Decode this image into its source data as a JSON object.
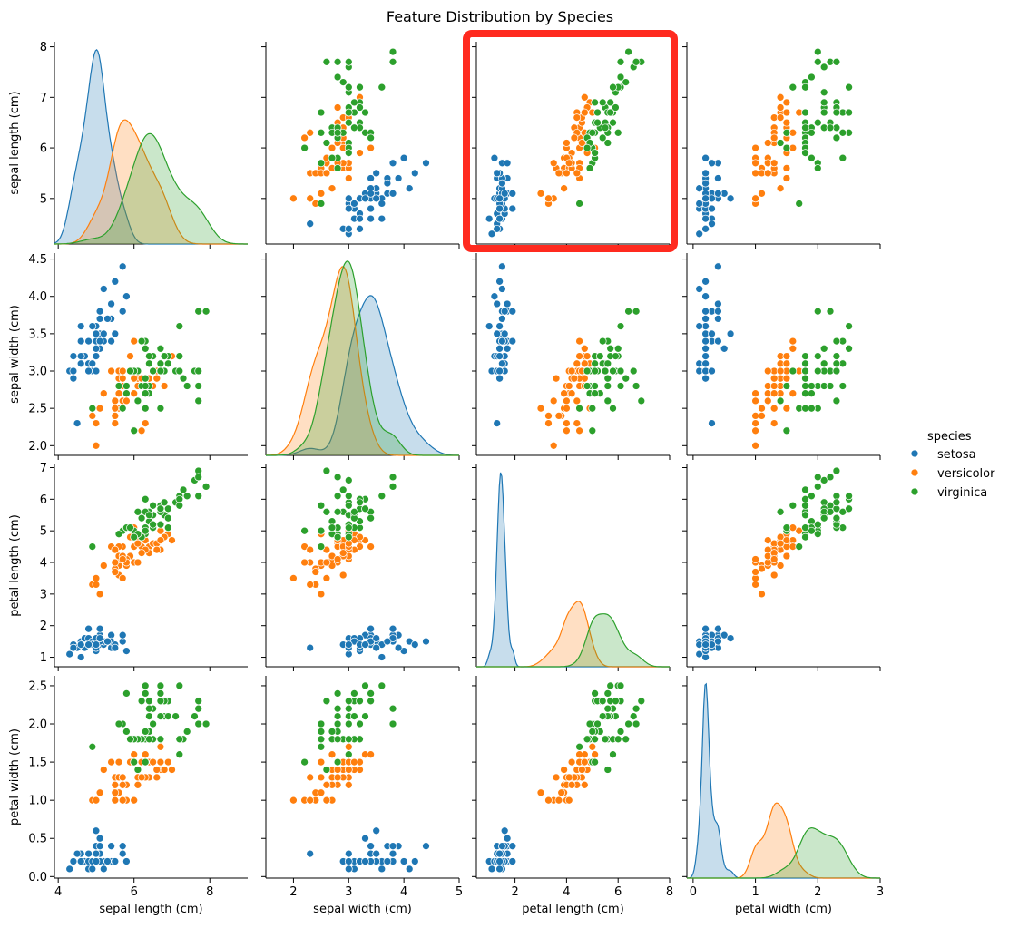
{
  "chart_data": {
    "type": "scatter",
    "title": "Feature Distribution by Species",
    "features": [
      "sepal length (cm)",
      "sepal width (cm)",
      "petal length (cm)",
      "petal width (cm)"
    ],
    "diagonal_type": "kde",
    "tick_labels": [
      [
        "4",
        "6",
        "8"
      ],
      [
        "2",
        "3",
        "4",
        "5"
      ],
      [
        "2",
        "4",
        "6",
        "8"
      ],
      [
        "0",
        "1",
        "2",
        "3"
      ]
    ],
    "y_tick_labels": [
      [
        "5",
        "6",
        "7",
        "8"
      ],
      [
        "2.0",
        "2.5",
        "3.0",
        "3.5",
        "4.0",
        "4.5"
      ],
      [
        "1",
        "2",
        "3",
        "4",
        "5",
        "6",
        "7"
      ],
      [
        "0.0",
        "0.5",
        "1.0",
        "1.5",
        "2.0",
        "2.5"
      ]
    ],
    "legend": {
      "title": "species",
      "placement": "right",
      "entries": [
        "setosa",
        "versicolor",
        "virginica"
      ]
    },
    "highlight": {
      "panel": "sepal length (cm) vs petal length (cm)",
      "color": "#ff2a1f"
    },
    "colors": {
      "setosa": "#1f77b4",
      "versicolor": "#ff7f0e",
      "virginica": "#2ca02c"
    },
    "series": [
      {
        "name": "setosa",
        "values": [
          [
            5.1,
            3.5,
            1.4,
            0.2
          ],
          [
            4.9,
            3.0,
            1.4,
            0.2
          ],
          [
            4.7,
            3.2,
            1.3,
            0.2
          ],
          [
            4.6,
            3.1,
            1.5,
            0.2
          ],
          [
            5.0,
            3.6,
            1.4,
            0.2
          ],
          [
            5.4,
            3.9,
            1.7,
            0.4
          ],
          [
            4.6,
            3.4,
            1.4,
            0.3
          ],
          [
            5.0,
            3.4,
            1.5,
            0.2
          ],
          [
            4.4,
            2.9,
            1.4,
            0.2
          ],
          [
            4.9,
            3.1,
            1.5,
            0.1
          ],
          [
            5.4,
            3.7,
            1.5,
            0.2
          ],
          [
            4.8,
            3.4,
            1.6,
            0.2
          ],
          [
            4.8,
            3.0,
            1.4,
            0.1
          ],
          [
            4.3,
            3.0,
            1.1,
            0.1
          ],
          [
            5.8,
            4.0,
            1.2,
            0.2
          ],
          [
            5.7,
            4.4,
            1.5,
            0.4
          ],
          [
            5.4,
            3.9,
            1.3,
            0.4
          ],
          [
            5.1,
            3.5,
            1.4,
            0.3
          ],
          [
            5.7,
            3.8,
            1.7,
            0.3
          ],
          [
            5.1,
            3.8,
            1.5,
            0.3
          ],
          [
            5.4,
            3.4,
            1.7,
            0.2
          ],
          [
            5.1,
            3.7,
            1.5,
            0.4
          ],
          [
            4.6,
            3.6,
            1.0,
            0.2
          ],
          [
            5.1,
            3.3,
            1.7,
            0.5
          ],
          [
            4.8,
            3.4,
            1.9,
            0.2
          ],
          [
            5.0,
            3.0,
            1.6,
            0.2
          ],
          [
            5.0,
            3.4,
            1.6,
            0.4
          ],
          [
            5.2,
            3.5,
            1.5,
            0.2
          ],
          [
            5.2,
            3.4,
            1.4,
            0.2
          ],
          [
            4.7,
            3.2,
            1.6,
            0.2
          ],
          [
            4.8,
            3.1,
            1.6,
            0.2
          ],
          [
            5.4,
            3.4,
            1.5,
            0.4
          ],
          [
            5.2,
            4.1,
            1.5,
            0.1
          ],
          [
            5.5,
            4.2,
            1.4,
            0.2
          ],
          [
            4.9,
            3.1,
            1.5,
            0.2
          ],
          [
            5.0,
            3.2,
            1.2,
            0.2
          ],
          [
            5.5,
            3.5,
            1.3,
            0.2
          ],
          [
            4.9,
            3.6,
            1.4,
            0.1
          ],
          [
            4.4,
            3.0,
            1.3,
            0.2
          ],
          [
            5.1,
            3.4,
            1.5,
            0.2
          ],
          [
            5.0,
            3.5,
            1.3,
            0.3
          ],
          [
            4.5,
            2.3,
            1.3,
            0.3
          ],
          [
            4.4,
            3.2,
            1.3,
            0.2
          ],
          [
            5.0,
            3.5,
            1.6,
            0.6
          ],
          [
            5.1,
            3.8,
            1.9,
            0.4
          ],
          [
            4.8,
            3.0,
            1.4,
            0.3
          ],
          [
            5.1,
            3.8,
            1.6,
            0.2
          ],
          [
            4.6,
            3.2,
            1.4,
            0.2
          ],
          [
            5.3,
            3.7,
            1.5,
            0.2
          ],
          [
            5.0,
            3.3,
            1.4,
            0.2
          ]
        ]
      },
      {
        "name": "versicolor",
        "values": [
          [
            7.0,
            3.2,
            4.7,
            1.4
          ],
          [
            6.4,
            3.2,
            4.5,
            1.5
          ],
          [
            6.9,
            3.1,
            4.9,
            1.5
          ],
          [
            5.5,
            2.3,
            4.0,
            1.3
          ],
          [
            6.5,
            2.8,
            4.6,
            1.5
          ],
          [
            5.7,
            2.8,
            4.5,
            1.3
          ],
          [
            6.3,
            3.3,
            4.7,
            1.6
          ],
          [
            4.9,
            2.4,
            3.3,
            1.0
          ],
          [
            6.6,
            2.9,
            4.6,
            1.3
          ],
          [
            5.2,
            2.7,
            3.9,
            1.4
          ],
          [
            5.0,
            2.0,
            3.5,
            1.0
          ],
          [
            5.9,
            3.0,
            4.2,
            1.5
          ],
          [
            6.0,
            2.2,
            4.0,
            1.0
          ],
          [
            6.1,
            2.9,
            4.7,
            1.4
          ],
          [
            5.6,
            2.9,
            3.6,
            1.3
          ],
          [
            6.7,
            3.1,
            4.4,
            1.4
          ],
          [
            5.6,
            3.0,
            4.5,
            1.5
          ],
          [
            5.8,
            2.7,
            4.1,
            1.0
          ],
          [
            6.2,
            2.2,
            4.5,
            1.5
          ],
          [
            5.6,
            2.5,
            3.9,
            1.1
          ],
          [
            5.9,
            3.2,
            4.8,
            1.8
          ],
          [
            6.1,
            2.8,
            4.0,
            1.3
          ],
          [
            6.3,
            2.5,
            4.9,
            1.5
          ],
          [
            6.1,
            2.8,
            4.7,
            1.2
          ],
          [
            6.4,
            2.9,
            4.3,
            1.3
          ],
          [
            6.6,
            3.0,
            4.4,
            1.4
          ],
          [
            6.8,
            2.8,
            4.8,
            1.4
          ],
          [
            6.7,
            3.0,
            5.0,
            1.7
          ],
          [
            6.0,
            2.9,
            4.5,
            1.5
          ],
          [
            5.7,
            2.6,
            3.5,
            1.0
          ],
          [
            5.5,
            2.4,
            3.8,
            1.1
          ],
          [
            5.5,
            2.4,
            3.7,
            1.0
          ],
          [
            5.8,
            2.7,
            3.9,
            1.2
          ],
          [
            6.0,
            2.7,
            5.1,
            1.6
          ],
          [
            5.4,
            3.0,
            4.5,
            1.5
          ],
          [
            6.0,
            3.4,
            4.5,
            1.6
          ],
          [
            6.7,
            3.1,
            4.7,
            1.5
          ],
          [
            6.3,
            2.3,
            4.4,
            1.3
          ],
          [
            5.6,
            3.0,
            4.1,
            1.3
          ],
          [
            5.5,
            2.5,
            4.0,
            1.3
          ],
          [
            5.5,
            2.6,
            4.4,
            1.2
          ],
          [
            6.1,
            3.0,
            4.6,
            1.4
          ],
          [
            5.8,
            2.6,
            4.0,
            1.2
          ],
          [
            5.0,
            2.3,
            3.3,
            1.0
          ],
          [
            5.6,
            2.7,
            4.2,
            1.3
          ],
          [
            5.7,
            3.0,
            4.2,
            1.2
          ],
          [
            5.7,
            2.9,
            4.2,
            1.3
          ],
          [
            6.2,
            2.9,
            4.3,
            1.3
          ],
          [
            5.1,
            2.5,
            3.0,
            1.1
          ],
          [
            5.7,
            2.8,
            4.1,
            1.3
          ]
        ]
      },
      {
        "name": "virginica",
        "values": [
          [
            6.3,
            3.3,
            6.0,
            2.5
          ],
          [
            5.8,
            2.7,
            5.1,
            1.9
          ],
          [
            7.1,
            3.0,
            5.9,
            2.1
          ],
          [
            6.3,
            2.9,
            5.6,
            1.8
          ],
          [
            6.5,
            3.0,
            5.8,
            2.2
          ],
          [
            7.6,
            3.0,
            6.6,
            2.1
          ],
          [
            4.9,
            2.5,
            4.5,
            1.7
          ],
          [
            7.3,
            2.9,
            6.3,
            1.8
          ],
          [
            6.7,
            2.5,
            5.8,
            1.8
          ],
          [
            7.2,
            3.6,
            6.1,
            2.5
          ],
          [
            6.5,
            3.2,
            5.1,
            2.0
          ],
          [
            6.4,
            2.7,
            5.3,
            1.9
          ],
          [
            6.8,
            3.0,
            5.5,
            2.1
          ],
          [
            5.7,
            2.5,
            5.0,
            2.0
          ],
          [
            5.8,
            2.8,
            5.1,
            2.4
          ],
          [
            6.4,
            3.2,
            5.3,
            2.3
          ],
          [
            6.5,
            3.0,
            5.5,
            1.8
          ],
          [
            7.7,
            3.8,
            6.7,
            2.2
          ],
          [
            7.7,
            2.6,
            6.9,
            2.3
          ],
          [
            6.0,
            2.2,
            5.0,
            1.5
          ],
          [
            6.9,
            3.2,
            5.7,
            2.3
          ],
          [
            5.6,
            2.8,
            4.9,
            2.0
          ],
          [
            7.7,
            2.8,
            6.7,
            2.0
          ],
          [
            6.3,
            2.7,
            4.9,
            1.8
          ],
          [
            6.7,
            3.3,
            5.7,
            2.1
          ],
          [
            7.2,
            3.2,
            6.0,
            1.8
          ],
          [
            6.2,
            2.8,
            4.8,
            1.8
          ],
          [
            6.1,
            3.0,
            4.9,
            1.8
          ],
          [
            6.4,
            2.8,
            5.6,
            2.1
          ],
          [
            7.2,
            3.0,
            5.8,
            1.6
          ],
          [
            7.4,
            2.8,
            6.1,
            1.9
          ],
          [
            7.9,
            3.8,
            6.4,
            2.0
          ],
          [
            6.4,
            2.8,
            5.6,
            2.2
          ],
          [
            6.3,
            2.8,
            5.1,
            1.5
          ],
          [
            6.1,
            2.6,
            5.6,
            1.4
          ],
          [
            7.7,
            3.0,
            6.1,
            2.3
          ],
          [
            6.3,
            3.4,
            5.6,
            2.4
          ],
          [
            6.4,
            3.1,
            5.5,
            1.8
          ],
          [
            6.0,
            3.0,
            4.8,
            1.8
          ],
          [
            6.9,
            3.1,
            5.4,
            2.1
          ],
          [
            6.7,
            3.1,
            5.6,
            2.4
          ],
          [
            6.9,
            3.1,
            5.1,
            2.3
          ],
          [
            5.8,
            2.7,
            5.1,
            1.9
          ],
          [
            6.8,
            3.2,
            5.9,
            2.3
          ],
          [
            6.7,
            3.3,
            5.7,
            2.5
          ],
          [
            6.7,
            3.0,
            5.2,
            2.3
          ],
          [
            6.3,
            2.5,
            5.0,
            1.9
          ],
          [
            6.5,
            3.0,
            5.2,
            2.0
          ],
          [
            6.2,
            3.4,
            5.4,
            2.3
          ],
          [
            5.9,
            3.0,
            5.1,
            1.8
          ]
        ]
      }
    ]
  }
}
